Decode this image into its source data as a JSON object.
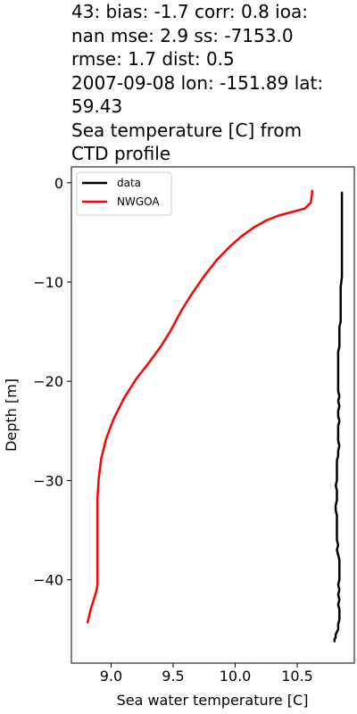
{
  "chart_data": {
    "type": "line",
    "title_lines": [
      "43: bias: -1.7  corr: 0.8  ioa:",
      "nan  mse: 2.9  ss: -7153.0",
      "rmse: 1.7  dist: 0.5",
      "2007-09-08 lon: -151.89 lat:",
      "59.43",
      "Sea temperature [C] from",
      "CTD profile"
    ],
    "xlabel": "Sea water temperature [C]",
    "ylabel": "Depth [m]",
    "xlim": [
      8.68,
      10.96
    ],
    "ylim": [
      -48.4,
      1.6
    ],
    "xticks": [
      9.0,
      9.5,
      10.0,
      10.5
    ],
    "xtick_labels": [
      "9.0",
      "9.5",
      "10.0",
      "10.5"
    ],
    "yticks": [
      0,
      -10,
      -20,
      -30,
      -40
    ],
    "ytick_labels": [
      "0",
      "−10",
      "−20",
      "−30",
      "−40"
    ],
    "grid": false,
    "legend_position": "top-left",
    "series": [
      {
        "name": "data",
        "color": "#000000",
        "x": [
          10.86,
          10.86,
          10.86,
          10.86,
          10.86,
          10.86,
          10.86,
          10.86,
          10.86,
          10.86,
          10.85,
          10.85,
          10.85,
          10.85,
          10.85,
          10.85,
          10.85,
          10.85,
          10.84,
          10.84,
          10.84,
          10.84,
          10.84,
          10.83,
          10.83,
          10.83,
          10.83,
          10.83,
          10.83,
          10.83,
          10.83,
          10.83,
          10.84,
          10.83,
          10.84,
          10.83,
          10.83,
          10.84,
          10.83,
          10.83,
          10.83,
          10.83,
          10.84,
          10.83,
          10.83,
          10.82,
          10.82,
          10.82,
          10.82,
          10.82,
          10.81,
          10.82,
          10.82,
          10.82,
          10.81,
          10.81,
          10.82,
          10.82,
          10.82,
          10.82,
          10.82,
          10.82,
          10.83,
          10.82,
          10.83,
          10.84,
          10.84,
          10.84,
          10.84,
          10.84,
          10.83,
          10.84,
          10.83,
          10.84,
          10.83,
          10.84,
          10.84,
          10.84,
          10.83,
          10.83,
          10.81,
          10.81,
          10.8,
          10.8
        ],
        "y": [
          -1.0,
          -1.5,
          -2.5,
          -3.5,
          -4.5,
          -5.5,
          -6.5,
          -7.5,
          -8.5,
          -9.5,
          -10.5,
          -11.0,
          -11.5,
          -12.0,
          -12.5,
          -13.0,
          -13.5,
          -14.0,
          -14.5,
          -15.0,
          -15.5,
          -16.0,
          -16.5,
          -17.0,
          -17.5,
          -18.0,
          -18.5,
          -19.0,
          -19.5,
          -20.0,
          -20.5,
          -21.0,
          -21.5,
          -22.0,
          -22.5,
          -23.0,
          -23.5,
          -24.0,
          -24.5,
          -25.0,
          -25.5,
          -26.0,
          -26.5,
          -27.0,
          -27.5,
          -28.0,
          -28.5,
          -29.0,
          -29.5,
          -30.0,
          -30.5,
          -31.0,
          -31.5,
          -32.0,
          -32.5,
          -33.0,
          -33.5,
          -34.0,
          -34.5,
          -35.0,
          -35.5,
          -36.0,
          -36.5,
          -37.0,
          -37.5,
          -38.0,
          -38.5,
          -39.0,
          -39.5,
          -40.0,
          -40.5,
          -41.0,
          -41.5,
          -42.0,
          -42.5,
          -43.0,
          -43.5,
          -44.0,
          -44.5,
          -45.0,
          -45.5,
          -45.8,
          -46.0,
          -46.2
        ]
      },
      {
        "name": "NWGOA",
        "color": "#ff0000",
        "x": [
          10.62,
          10.62,
          10.61,
          10.56,
          10.35,
          10.25,
          10.15,
          10.05,
          9.95,
          9.85,
          9.75,
          9.65,
          9.56,
          9.48,
          9.4,
          9.3,
          9.2,
          9.1,
          9.02,
          8.96,
          8.92,
          8.9,
          8.89,
          8.89,
          8.89,
          8.89,
          8.89,
          8.89,
          8.89,
          8.89,
          8.88,
          8.84,
          8.81
        ],
        "y": [
          -0.8,
          -1.0,
          -2.0,
          -2.6,
          -3.3,
          -3.8,
          -4.5,
          -5.4,
          -6.5,
          -7.8,
          -9.4,
          -11.2,
          -13.0,
          -14.9,
          -16.5,
          -18.2,
          -19.8,
          -21.8,
          -23.8,
          -25.8,
          -27.8,
          -29.8,
          -31.8,
          -32.4,
          -34.0,
          -36.0,
          -38.0,
          -40.0,
          -40.2,
          -40.5,
          -41.2,
          -42.8,
          -44.3
        ]
      }
    ]
  }
}
